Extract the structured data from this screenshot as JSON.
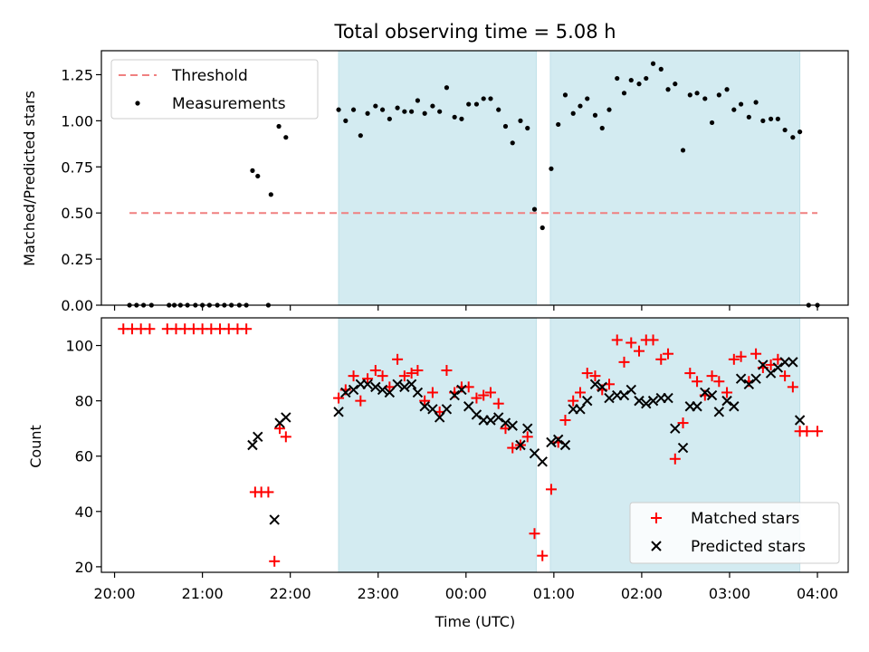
{
  "chart_data": {
    "title": "Total observing time = 5.08 h",
    "xlabel": "Time (UTC)",
    "x_domain_hours": [
      19.85,
      28.35
    ],
    "x_ticks": [
      {
        "value": 20,
        "label": "20:00"
      },
      {
        "value": 21,
        "label": "21:00"
      },
      {
        "value": 22,
        "label": "22:00"
      },
      {
        "value": 23,
        "label": "23:00"
      },
      {
        "value": 24,
        "label": "00:00"
      },
      {
        "value": 25,
        "label": "01:00"
      },
      {
        "value": 26,
        "label": "02:00"
      },
      {
        "value": 27,
        "label": "03:00"
      },
      {
        "value": 28,
        "label": "04:00"
      }
    ],
    "observing_windows": [
      [
        22.55,
        24.8
      ],
      [
        24.96,
        27.8
      ]
    ],
    "window_color": "#d3ebf1",
    "top": {
      "type": "scatter",
      "ylabel": "Matched/Predicted stars",
      "ylim": [
        0,
        1.38
      ],
      "yticks": [
        {
          "value": 0,
          "label": "0.00"
        },
        {
          "value": 0.25,
          "label": "0.25"
        },
        {
          "value": 0.5,
          "label": "0.50"
        },
        {
          "value": 0.75,
          "label": "0.75"
        },
        {
          "value": 1.0,
          "label": "1.00"
        },
        {
          "value": 1.25,
          "label": "1.25"
        }
      ],
      "threshold": {
        "name": "Threshold",
        "y": 0.5,
        "x_range": [
          20.17,
          28.0
        ],
        "color": "#f08080"
      },
      "measurements": {
        "name": "Measurements",
        "color": "#000000",
        "points": [
          [
            20.17,
            0
          ],
          [
            20.25,
            0
          ],
          [
            20.33,
            0
          ],
          [
            20.42,
            0
          ],
          [
            20.62,
            0
          ],
          [
            20.68,
            0
          ],
          [
            20.75,
            0
          ],
          [
            20.83,
            0
          ],
          [
            20.92,
            0
          ],
          [
            21.0,
            0
          ],
          [
            21.08,
            0
          ],
          [
            21.17,
            0
          ],
          [
            21.25,
            0
          ],
          [
            21.33,
            0
          ],
          [
            21.42,
            0
          ],
          [
            21.5,
            0
          ],
          [
            21.75,
            0
          ],
          [
            21.57,
            0.73
          ],
          [
            21.63,
            0.7
          ],
          [
            21.78,
            0.6
          ],
          [
            21.87,
            0.97
          ],
          [
            21.95,
            0.91
          ],
          [
            22.55,
            1.06
          ],
          [
            22.63,
            1.0
          ],
          [
            22.72,
            1.06
          ],
          [
            22.8,
            0.92
          ],
          [
            22.88,
            1.04
          ],
          [
            22.97,
            1.08
          ],
          [
            23.05,
            1.06
          ],
          [
            23.13,
            1.01
          ],
          [
            23.22,
            1.07
          ],
          [
            23.3,
            1.05
          ],
          [
            23.38,
            1.05
          ],
          [
            23.45,
            1.11
          ],
          [
            23.53,
            1.04
          ],
          [
            23.62,
            1.08
          ],
          [
            23.7,
            1.05
          ],
          [
            23.78,
            1.18
          ],
          [
            23.87,
            1.02
          ],
          [
            23.95,
            1.01
          ],
          [
            24.03,
            1.09
          ],
          [
            24.12,
            1.09
          ],
          [
            24.2,
            1.12
          ],
          [
            24.28,
            1.12
          ],
          [
            24.37,
            1.06
          ],
          [
            24.45,
            0.97
          ],
          [
            24.53,
            0.88
          ],
          [
            24.62,
            1.0
          ],
          [
            24.7,
            0.96
          ],
          [
            24.78,
            0.52
          ],
          [
            24.87,
            0.42
          ],
          [
            24.97,
            0.74
          ],
          [
            25.05,
            0.98
          ],
          [
            25.13,
            1.14
          ],
          [
            25.22,
            1.04
          ],
          [
            25.3,
            1.08
          ],
          [
            25.38,
            1.12
          ],
          [
            25.47,
            1.03
          ],
          [
            25.55,
            0.96
          ],
          [
            25.63,
            1.06
          ],
          [
            25.72,
            1.23
          ],
          [
            25.8,
            1.15
          ],
          [
            25.88,
            1.22
          ],
          [
            25.97,
            1.2
          ],
          [
            26.05,
            1.23
          ],
          [
            26.13,
            1.31
          ],
          [
            26.22,
            1.28
          ],
          [
            26.3,
            1.17
          ],
          [
            26.38,
            1.2
          ],
          [
            26.47,
            0.84
          ],
          [
            26.55,
            1.14
          ],
          [
            26.63,
            1.15
          ],
          [
            26.72,
            1.12
          ],
          [
            26.8,
            0.99
          ],
          [
            26.88,
            1.14
          ],
          [
            26.97,
            1.17
          ],
          [
            27.05,
            1.06
          ],
          [
            27.13,
            1.09
          ],
          [
            27.22,
            1.02
          ],
          [
            27.3,
            1.1
          ],
          [
            27.38,
            1.0
          ],
          [
            27.47,
            1.01
          ],
          [
            27.55,
            1.01
          ],
          [
            27.63,
            0.95
          ],
          [
            27.72,
            0.91
          ],
          [
            27.8,
            0.94
          ],
          [
            27.9,
            0
          ],
          [
            28.0,
            0
          ]
        ]
      }
    },
    "bottom": {
      "type": "scatter",
      "ylabel": "Count",
      "ylim": [
        18,
        110
      ],
      "yticks": [
        {
          "value": 20,
          "label": "20"
        },
        {
          "value": 40,
          "label": "40"
        },
        {
          "value": 60,
          "label": "60"
        },
        {
          "value": 80,
          "label": "80"
        },
        {
          "value": 100,
          "label": "100"
        }
      ],
      "series": [
        {
          "name": "Matched stars",
          "marker": "plus",
          "color": "#ff0000",
          "points": [
            [
              20.1,
              106
            ],
            [
              20.2,
              106
            ],
            [
              20.3,
              106
            ],
            [
              20.4,
              106
            ],
            [
              20.6,
              106
            ],
            [
              20.7,
              106
            ],
            [
              20.8,
              106
            ],
            [
              20.9,
              106
            ],
            [
              21.0,
              106
            ],
            [
              21.1,
              106
            ],
            [
              21.2,
              106
            ],
            [
              21.3,
              106
            ],
            [
              21.4,
              106
            ],
            [
              21.5,
              106
            ],
            [
              21.6,
              47
            ],
            [
              21.67,
              47
            ],
            [
              21.75,
              47
            ],
            [
              21.82,
              22
            ],
            [
              21.88,
              70
            ],
            [
              21.95,
              67
            ],
            [
              22.55,
              81
            ],
            [
              22.63,
              84
            ],
            [
              22.72,
              89
            ],
            [
              22.8,
              80
            ],
            [
              22.88,
              88
            ],
            [
              22.97,
              91
            ],
            [
              23.05,
              89
            ],
            [
              23.13,
              85
            ],
            [
              23.22,
              95
            ],
            [
              23.3,
              89
            ],
            [
              23.38,
              90
            ],
            [
              23.45,
              91
            ],
            [
              23.53,
              80
            ],
            [
              23.62,
              83
            ],
            [
              23.7,
              76
            ],
            [
              23.78,
              91
            ],
            [
              23.87,
              83
            ],
            [
              23.95,
              85
            ],
            [
              24.03,
              85
            ],
            [
              24.12,
              81
            ],
            [
              24.2,
              82
            ],
            [
              24.28,
              83
            ],
            [
              24.37,
              79
            ],
            [
              24.45,
              70
            ],
            [
              24.53,
              63
            ],
            [
              24.62,
              64
            ],
            [
              24.7,
              67
            ],
            [
              24.78,
              32
            ],
            [
              24.87,
              24
            ],
            [
              24.97,
              48
            ],
            [
              25.05,
              65
            ],
            [
              25.13,
              73
            ],
            [
              25.22,
              80
            ],
            [
              25.3,
              83
            ],
            [
              25.38,
              90
            ],
            [
              25.47,
              89
            ],
            [
              25.55,
              84
            ],
            [
              25.63,
              86
            ],
            [
              25.72,
              102
            ],
            [
              25.8,
              94
            ],
            [
              25.88,
              101
            ],
            [
              25.97,
              98
            ],
            [
              26.05,
              102
            ],
            [
              26.13,
              102
            ],
            [
              26.22,
              95
            ],
            [
              26.3,
              97
            ],
            [
              26.38,
              59
            ],
            [
              26.47,
              72
            ],
            [
              26.55,
              90
            ],
            [
              26.63,
              87
            ],
            [
              26.72,
              82
            ],
            [
              26.8,
              89
            ],
            [
              26.88,
              87
            ],
            [
              26.97,
              83
            ],
            [
              27.05,
              95
            ],
            [
              27.13,
              96
            ],
            [
              27.22,
              87
            ],
            [
              27.3,
              97
            ],
            [
              27.38,
              92
            ],
            [
              27.47,
              93
            ],
            [
              27.55,
              95
            ],
            [
              27.63,
              89
            ],
            [
              27.72,
              85
            ],
            [
              27.8,
              69
            ],
            [
              27.88,
              69
            ],
            [
              28.0,
              69
            ]
          ]
        },
        {
          "name": "Predicted stars",
          "marker": "x",
          "color": "#000000",
          "points": [
            [
              21.57,
              64
            ],
            [
              21.63,
              67
            ],
            [
              21.82,
              37
            ],
            [
              21.88,
              72
            ],
            [
              21.95,
              74
            ],
            [
              22.55,
              76
            ],
            [
              22.63,
              83
            ],
            [
              22.72,
              84
            ],
            [
              22.8,
              86
            ],
            [
              22.88,
              86
            ],
            [
              22.97,
              85
            ],
            [
              23.05,
              84
            ],
            [
              23.13,
              83
            ],
            [
              23.22,
              86
            ],
            [
              23.3,
              85
            ],
            [
              23.38,
              86
            ],
            [
              23.45,
              83
            ],
            [
              23.53,
              78
            ],
            [
              23.62,
              77
            ],
            [
              23.7,
              74
            ],
            [
              23.78,
              77
            ],
            [
              23.87,
              82
            ],
            [
              23.95,
              84
            ],
            [
              24.03,
              78
            ],
            [
              24.12,
              75
            ],
            [
              24.2,
              73
            ],
            [
              24.28,
              73
            ],
            [
              24.37,
              74
            ],
            [
              24.45,
              72
            ],
            [
              24.53,
              71
            ],
            [
              24.62,
              64
            ],
            [
              24.7,
              70
            ],
            [
              24.78,
              61
            ],
            [
              24.87,
              58
            ],
            [
              24.97,
              65
            ],
            [
              25.05,
              66
            ],
            [
              25.13,
              64
            ],
            [
              25.22,
              77
            ],
            [
              25.3,
              77
            ],
            [
              25.38,
              80
            ],
            [
              25.47,
              86
            ],
            [
              25.55,
              85
            ],
            [
              25.63,
              81
            ],
            [
              25.72,
              82
            ],
            [
              25.8,
              82
            ],
            [
              25.88,
              84
            ],
            [
              25.97,
              80
            ],
            [
              26.05,
              79
            ],
            [
              26.13,
              80
            ],
            [
              26.22,
              81
            ],
            [
              26.3,
              81
            ],
            [
              26.38,
              70
            ],
            [
              26.47,
              63
            ],
            [
              26.55,
              78
            ],
            [
              26.63,
              78
            ],
            [
              26.72,
              83
            ],
            [
              26.8,
              82
            ],
            [
              26.88,
              76
            ],
            [
              26.97,
              80
            ],
            [
              27.05,
              78
            ],
            [
              27.13,
              88
            ],
            [
              27.22,
              86
            ],
            [
              27.3,
              88
            ],
            [
              27.38,
              93
            ],
            [
              27.47,
              90
            ],
            [
              27.55,
              92
            ],
            [
              27.63,
              94
            ],
            [
              27.72,
              94
            ],
            [
              27.8,
              73
            ]
          ]
        }
      ]
    },
    "legends": {
      "top": {
        "placement": "top-left"
      },
      "bottom": {
        "placement": "bottom-right"
      }
    }
  }
}
